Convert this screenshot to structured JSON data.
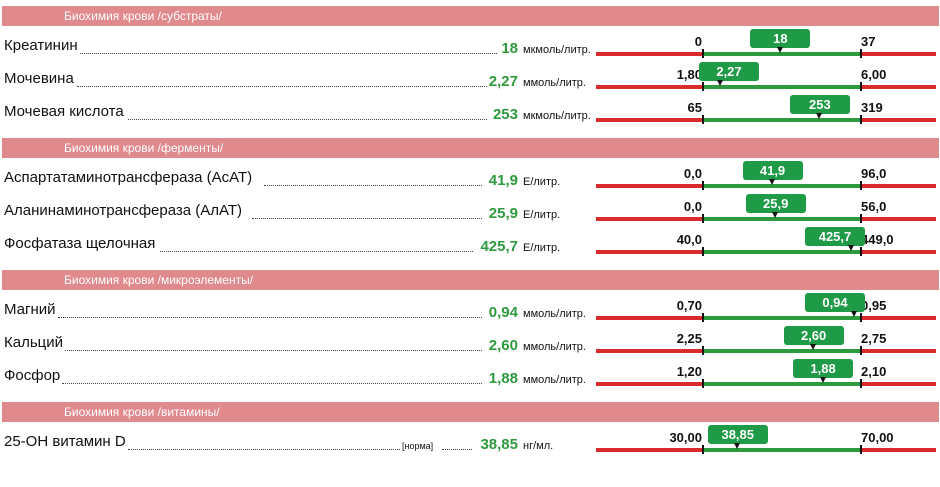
{
  "sections": [
    {
      "title": "Биохимия крови /субстраты/",
      "rows": [
        {
          "name": "Креатинин",
          "value": "18",
          "unit": "мкмоль/литр.",
          "low": "0",
          "high": "37",
          "flag": "18",
          "fraction": 0.49
        },
        {
          "name": "Мочевина",
          "value": "2,27",
          "unit": "ммоль/литр.",
          "low": "1,80",
          "high": "6,00",
          "flag": "2,27",
          "fraction": 0.11
        },
        {
          "name": "Мочевая кислота",
          "value": "253",
          "unit": "мкмоль/литр.",
          "low": "65",
          "high": "319",
          "flag": "253",
          "fraction": 0.74
        }
      ]
    },
    {
      "title": "Биохимия крови /ферменты/",
      "rows": [
        {
          "name": "Аспартатаминотрансфераза (АсАТ)",
          "value": "41,9",
          "unit": "Е/литр.",
          "low": "0,0",
          "high": "96,0",
          "flag": "41,9",
          "fraction": 0.44
        },
        {
          "name": "Аланинаминотрансфераза (АлАТ)",
          "value": "25,9",
          "unit": "Е/литр.",
          "low": "0,0",
          "high": "56,0",
          "flag": "25,9",
          "fraction": 0.46
        },
        {
          "name": "Фосфатаза щелочная",
          "value": "425,7",
          "unit": "Е/литр.",
          "low": "40,0",
          "high": "449,0",
          "flag": "425,7",
          "fraction": 0.94
        }
      ]
    },
    {
      "title": "Биохимия крови /микроэлементы/",
      "rows": [
        {
          "name": "Магний",
          "value": "0,94",
          "unit": "ммоль/литр.",
          "low": "0,70",
          "high": "0,95",
          "flag": "0,94",
          "fraction": 0.96
        },
        {
          "name": "Кальций",
          "value": "2,60",
          "unit": "ммоль/литр.",
          "low": "2,25",
          "high": "2,75",
          "flag": "2,60",
          "fraction": 0.7
        },
        {
          "name": "Фосфор",
          "value": "1,88",
          "unit": "ммоль/литр.",
          "low": "1,20",
          "high": "2,10",
          "flag": "1,88",
          "fraction": 0.76
        }
      ]
    },
    {
      "title": "Биохимия крови /витамины/",
      "rows": [
        {
          "name": "25-ОН витамин D",
          "norm_tag": "[норма]",
          "value": "38,85",
          "unit": "нг/мл.",
          "low": "30,00",
          "high": "70,00",
          "flag": "38,85",
          "fraction": 0.22
        }
      ]
    }
  ],
  "colors": {
    "header_bg": "#e08a8e",
    "value_green": "#2e9a3e",
    "flag_green": "#1f9a47",
    "bar_red": "#d92b2b"
  }
}
